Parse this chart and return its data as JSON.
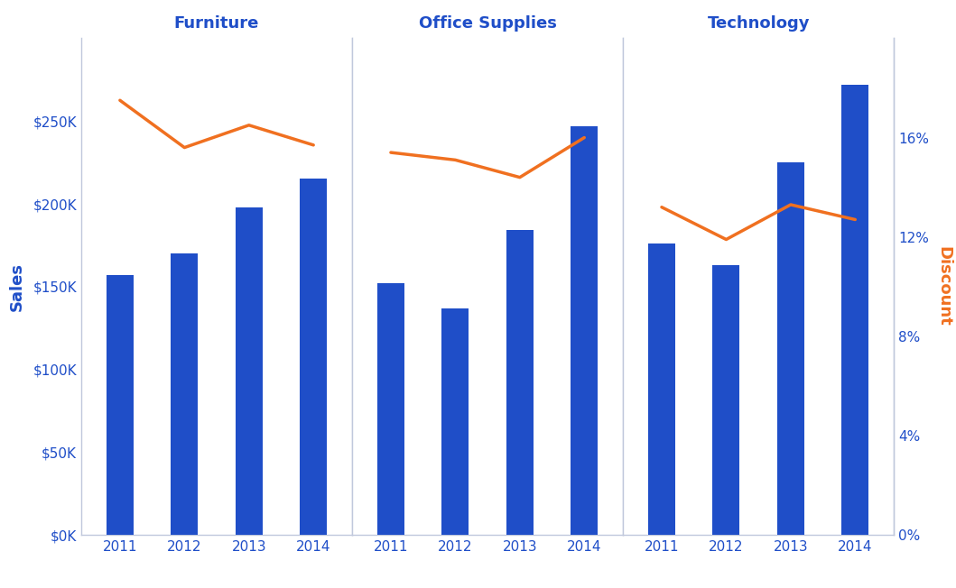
{
  "categories": [
    "Furniture",
    "Office Supplies",
    "Technology"
  ],
  "years": [
    2011,
    2012,
    2013,
    2014
  ],
  "sales": {
    "Furniture": [
      157000,
      170000,
      198000,
      215000
    ],
    "Office Supplies": [
      152000,
      137000,
      184000,
      247000
    ],
    "Technology": [
      176000,
      163000,
      225000,
      272000
    ]
  },
  "discount": {
    "Furniture": [
      0.175,
      0.156,
      0.165,
      0.157
    ],
    "Office Supplies": [
      0.154,
      0.151,
      0.144,
      0.16
    ],
    "Technology": [
      0.132,
      0.119,
      0.133,
      0.127
    ]
  },
  "bar_color": "#1f4ec8",
  "line_color": "#f07020",
  "title_color": "#1f4ec8",
  "axis_label_sales_color": "#1f4ec8",
  "axis_label_discount_color": "#f07020",
  "tick_color": "#1f4ec8",
  "background_color": "#ffffff",
  "divider_color": "#c0c8dc",
  "sales_ylim": [
    0,
    300000
  ],
  "discount_ylim": [
    0,
    0.2
  ],
  "sales_ticks": [
    0,
    50000,
    100000,
    150000,
    200000,
    250000
  ],
  "discount_ticks": [
    0,
    0.04,
    0.08,
    0.12,
    0.16
  ],
  "figsize": [
    10.59,
    6.52
  ],
  "dpi": 100
}
